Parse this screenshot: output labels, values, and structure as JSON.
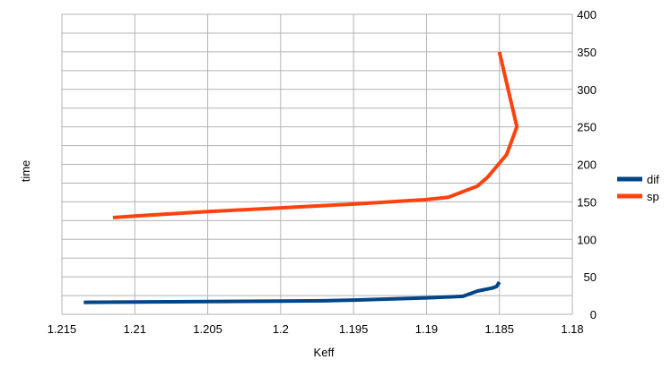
{
  "chart_data": {
    "type": "line",
    "title": "",
    "xlabel": "Keff",
    "ylabel": "time",
    "xlim": [
      1.215,
      1.18
    ],
    "ylim": [
      0,
      400
    ],
    "x_reversed": true,
    "grid": true,
    "y_axis_side": "right",
    "x_ticks": [
      "1.215",
      "1.21",
      "1.205",
      "1.2",
      "1.195",
      "1.19",
      "1.185",
      "1.18"
    ],
    "y_ticks": [
      "0",
      "50",
      "100",
      "150",
      "200",
      "250",
      "300",
      "350",
      "400"
    ],
    "legend_position": "right",
    "series": [
      {
        "name": "dif",
        "color": "#004586",
        "x": [
          1.2135,
          1.21,
          1.205,
          1.2,
          1.197,
          1.195,
          1.19,
          1.1875,
          1.1865,
          1.1855,
          1.1852,
          1.185
        ],
        "y": [
          16,
          16.5,
          17,
          17.5,
          18,
          19,
          22,
          24,
          31,
          35,
          37,
          43
        ]
      },
      {
        "name": "sp",
        "color": "#ff420e",
        "x": [
          1.2115,
          1.21,
          1.205,
          1.2,
          1.195,
          1.19,
          1.1885,
          1.1865,
          1.1858,
          1.1845,
          1.1838,
          1.185
        ],
        "y": [
          129,
          131,
          137,
          142,
          147,
          153,
          156,
          171,
          183,
          213,
          250,
          350
        ]
      }
    ]
  }
}
